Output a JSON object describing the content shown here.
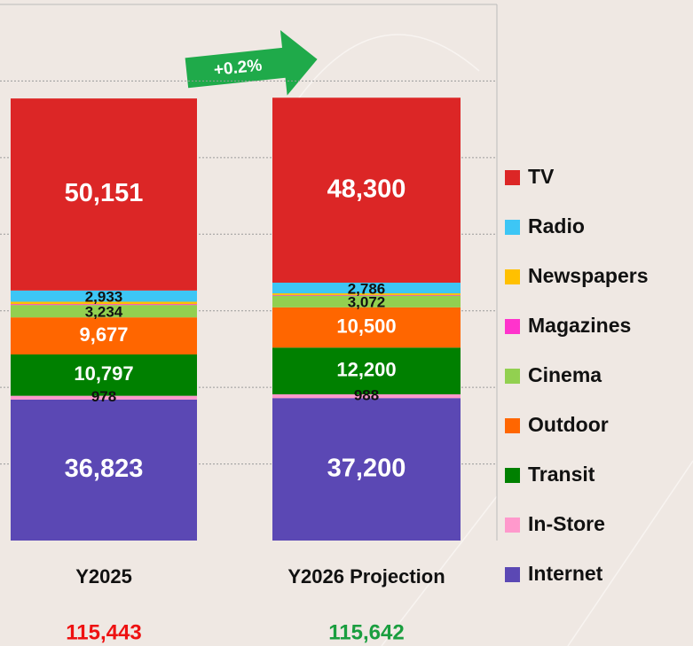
{
  "chart_data": {
    "type": "stacked_bar",
    "categories": [
      "Y2025",
      "Y2026 Projection"
    ],
    "series": [
      {
        "name": "Internet",
        "color": "#5b48b4",
        "values": [
          36823,
          37200
        ],
        "value_labels": [
          "36,823",
          "37,200"
        ]
      },
      {
        "name": "In-Store",
        "color": "#ff99cc",
        "values": [
          978,
          988
        ],
        "value_labels": [
          "978",
          "988"
        ]
      },
      {
        "name": "Transit",
        "color": "#008000",
        "values": [
          10797,
          12200
        ],
        "value_labels": [
          "10,797",
          "12,200"
        ]
      },
      {
        "name": "Outdoor",
        "color": "#ff6600",
        "values": [
          9677,
          10500
        ],
        "value_labels": [
          "9,677",
          "10,500"
        ]
      },
      {
        "name": "Cinema",
        "color": "#92d050",
        "values": [
          3234,
          3072
        ],
        "value_labels": [
          "3,234",
          "3,072"
        ]
      },
      {
        "name": "Magazines",
        "color": "#ff33cc",
        "values": [
          237,
          167
        ]
      },
      {
        "name": "Newspapers",
        "color": "#ffc000",
        "values": [
          613,
          429
        ]
      },
      {
        "name": "Radio",
        "color": "#3dc6f5",
        "values": [
          2933,
          2786
        ],
        "value_labels": [
          "2,933",
          "2,786"
        ]
      },
      {
        "name": "TV",
        "color": "#dc2626",
        "values": [
          50151,
          48300
        ],
        "value_labels": [
          "50,151",
          "48,300"
        ]
      }
    ],
    "totals": [
      115443,
      115642
    ],
    "total_labels": [
      "115,443",
      "115,642"
    ],
    "total_colors": [
      "#ee1111",
      "#1a9e3f"
    ],
    "change_label": "+0.2%",
    "ylim": [
      0,
      140000
    ],
    "yticks": [
      0,
      20000,
      40000,
      60000,
      80000,
      100000,
      120000,
      140000
    ],
    "grid": true
  }
}
